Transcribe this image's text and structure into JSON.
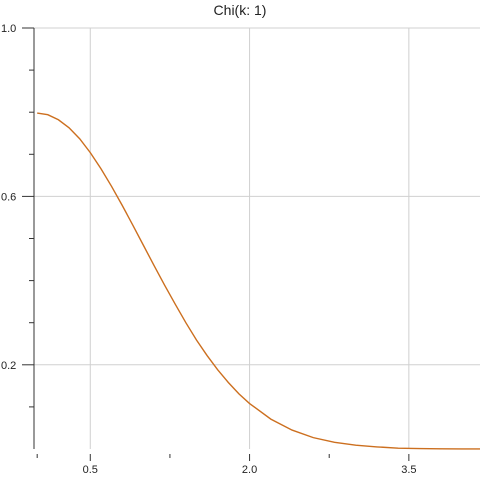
{
  "chart_data": {
    "type": "line",
    "title": "Chi(k: 1)",
    "xlabel": "",
    "ylabel": "",
    "xlim": [
      -0.03,
      4.17
    ],
    "ylim": [
      0.0,
      1.0
    ],
    "x_major_ticks": [
      0.5,
      2.0,
      3.5
    ],
    "x_minor_ticks": [
      0.0,
      1.25,
      2.75,
      4.25
    ],
    "x_tick_labels": [
      "0.5",
      "2.0",
      "3.5"
    ],
    "y_major_ticks": [
      0.2,
      0.6,
      1.0
    ],
    "y_minor_ticks": [
      0.1,
      0.3,
      0.4,
      0.5,
      0.7,
      0.8,
      0.9
    ],
    "y_tick_labels": [
      "0.2",
      "0.6",
      "1.0"
    ],
    "grid": true,
    "legend": "none",
    "series": [
      {
        "color": "#cc6f1f",
        "x": [
          0.0,
          0.1,
          0.2,
          0.3,
          0.4,
          0.5,
          0.6,
          0.7,
          0.8,
          0.9,
          1.0,
          1.1,
          1.2,
          1.3,
          1.4,
          1.5,
          1.6,
          1.7,
          1.8,
          1.9,
          2.0,
          2.2,
          2.4,
          2.6,
          2.8,
          3.0,
          3.2,
          3.4,
          3.6,
          3.8,
          4.0,
          4.17
        ],
        "values": [
          0.798,
          0.794,
          0.782,
          0.763,
          0.737,
          0.704,
          0.666,
          0.624,
          0.579,
          0.532,
          0.484,
          0.436,
          0.389,
          0.344,
          0.3,
          0.259,
          0.222,
          0.188,
          0.158,
          0.131,
          0.108,
          0.071,
          0.045,
          0.027,
          0.016,
          0.009,
          0.005,
          0.002,
          0.001,
          0.0005,
          0.0002,
          0.0001
        ]
      }
    ]
  }
}
